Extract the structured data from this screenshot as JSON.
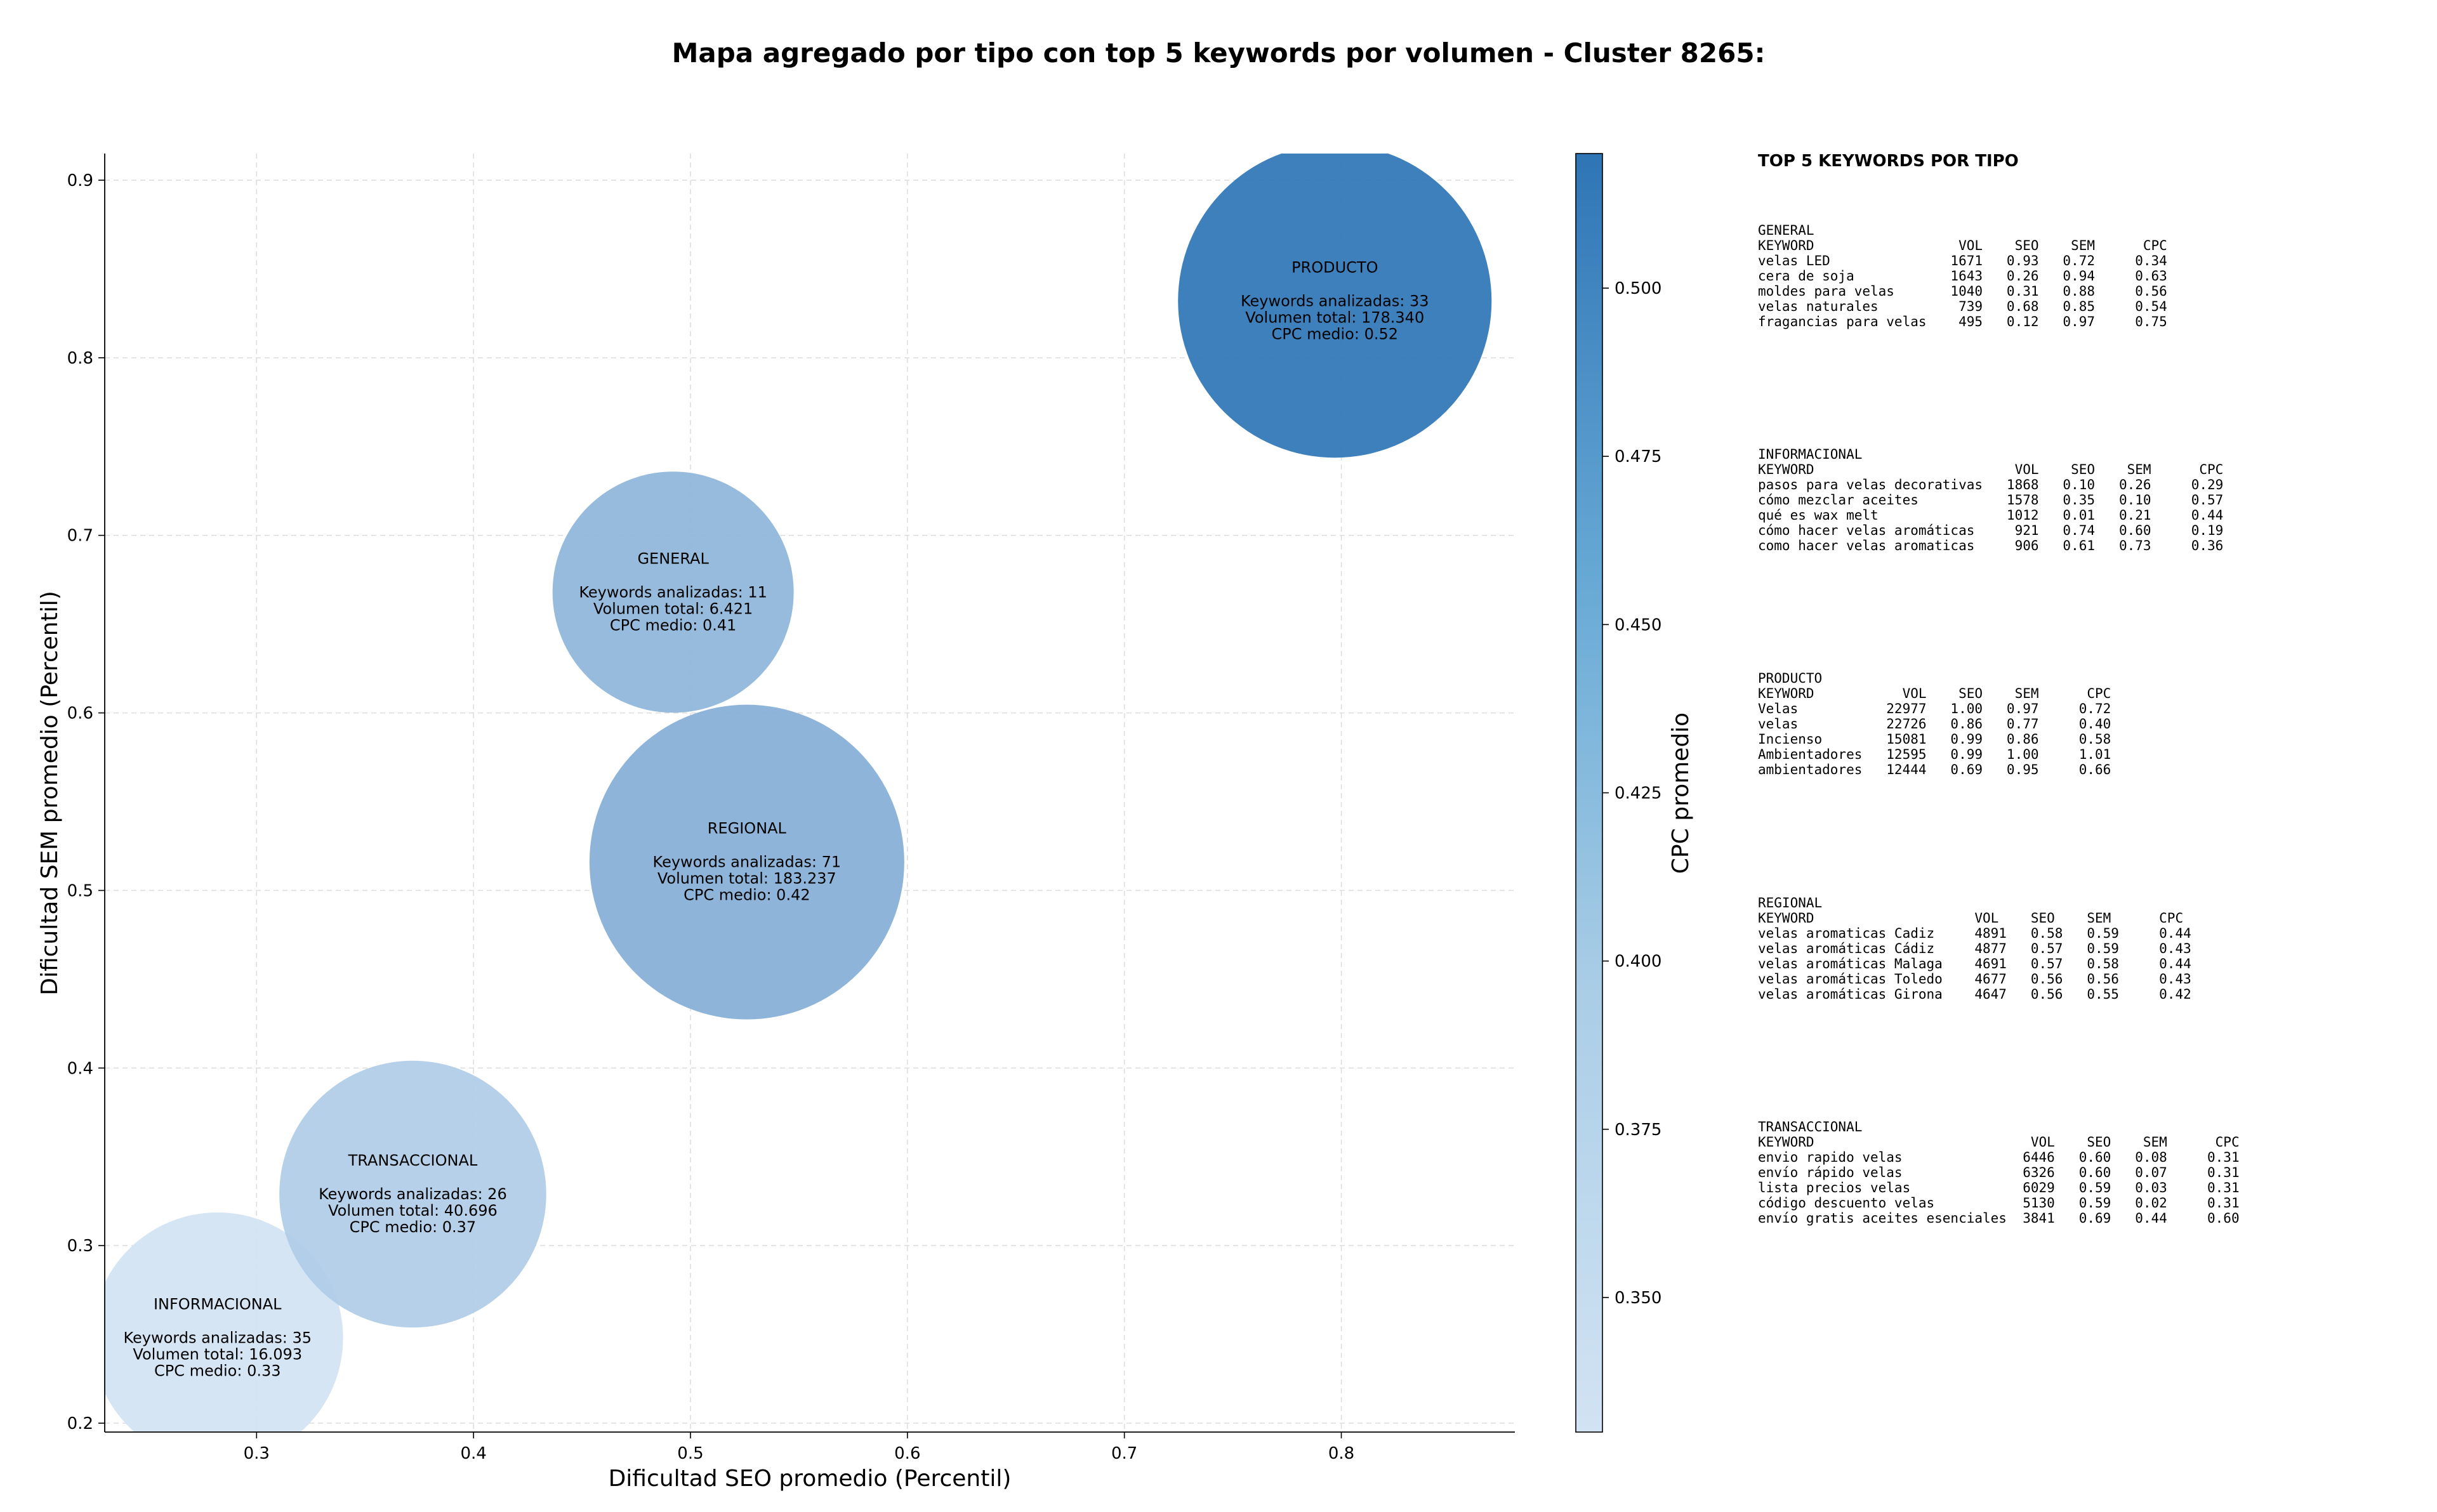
{
  "title": "Mapa agregado por tipo con top 5 keywords por volumen - Cluster 8265:",
  "chart_data": {
    "type": "scatter",
    "xlabel": "Dificultad SEO promedio (Percentil)",
    "ylabel": "Dificultad SEM promedio (Percentil)",
    "xlim": [
      0.23,
      0.88
    ],
    "ylim": [
      0.195,
      0.915
    ],
    "xticks": [
      "0.3",
      "0.4",
      "0.5",
      "0.6",
      "0.7",
      "0.8"
    ],
    "yticks": [
      "0.2",
      "0.3",
      "0.4",
      "0.5",
      "0.6",
      "0.7",
      "0.8",
      "0.9"
    ],
    "grid": true,
    "colorbar": {
      "label": "CPC promedio",
      "range": [
        0.33,
        0.52
      ],
      "ticks": [
        "0.350",
        "0.375",
        "0.400",
        "0.425",
        "0.450",
        "0.475",
        "0.500"
      ],
      "color_low": "#d2e3f3",
      "color_high": "#2e75b6"
    },
    "bubbles": [
      {
        "name": "INFORMACIONAL",
        "x": 0.282,
        "y": 0.248,
        "keywords_label": "Keywords analizadas: 35",
        "volume_label": "Volumen total: 16.093",
        "cpc_label": "CPC medio: 0.33",
        "volume": 16093,
        "cpc": 0.33
      },
      {
        "name": "TRANSACCIONAL",
        "x": 0.372,
        "y": 0.329,
        "keywords_label": "Keywords analizadas: 26",
        "volume_label": "Volumen total: 40.696",
        "cpc_label": "CPC medio: 0.37",
        "volume": 40696,
        "cpc": 0.37
      },
      {
        "name": "GENERAL",
        "x": 0.492,
        "y": 0.668,
        "keywords_label": "Keywords analizadas: 11",
        "volume_label": "Volumen total: 6.421",
        "cpc_label": "CPC medio: 0.41",
        "volume": 6421,
        "cpc": 0.41
      },
      {
        "name": "REGIONAL",
        "x": 0.526,
        "y": 0.516,
        "keywords_label": "Keywords analizadas: 71",
        "volume_label": "Volumen total: 183.237",
        "cpc_label": "CPC medio: 0.42",
        "volume": 183237,
        "cpc": 0.42
      },
      {
        "name": "PRODUCTO",
        "x": 0.797,
        "y": 0.832,
        "keywords_label": "Keywords analizadas: 33",
        "volume_label": "Volumen total: 178.340",
        "cpc_label": "CPC medio: 0.52",
        "volume": 178340,
        "cpc": 0.52
      }
    ]
  },
  "keywords_panel": {
    "title": "TOP 5 KEYWORDS POR TIPO",
    "sections": [
      {
        "name": "GENERAL",
        "lines": [
          "KEYWORD                  VOL    SEO    SEM      CPC",
          "velas LED               1671   0.93   0.72     0.34",
          "cera de soja            1643   0.26   0.94     0.63",
          "moldes para velas       1040   0.31   0.88     0.56",
          "velas naturales          739   0.68   0.85     0.54",
          "fragancias para velas    495   0.12   0.97     0.75"
        ]
      },
      {
        "name": "INFORMACIONAL",
        "lines": [
          "KEYWORD                         VOL    SEO    SEM      CPC",
          "pasos para velas decorativas   1868   0.10   0.26     0.29",
          "cómo mezclar aceites           1578   0.35   0.10     0.57",
          "qué es wax melt                1012   0.01   0.21     0.44",
          "cómo hacer velas aromáticas     921   0.74   0.60     0.19",
          "como hacer velas aromaticas     906   0.61   0.73     0.36"
        ]
      },
      {
        "name": "PRODUCTO",
        "lines": [
          "KEYWORD           VOL    SEO    SEM      CPC",
          "Velas           22977   1.00   0.97     0.72",
          "velas           22726   0.86   0.77     0.40",
          "Incienso        15081   0.99   0.86     0.58",
          "Ambientadores   12595   0.99   1.00     1.01",
          "ambientadores   12444   0.69   0.95     0.66"
        ]
      },
      {
        "name": "REGIONAL",
        "lines": [
          "KEYWORD                    VOL    SEO    SEM      CPC",
          "velas aromaticas Cadiz     4891   0.58   0.59     0.44",
          "velas aromáticas Cádiz     4877   0.57   0.59     0.43",
          "velas aromáticas Malaga    4691   0.57   0.58     0.44",
          "velas aromáticas Toledo    4677   0.56   0.56     0.43",
          "velas aromáticas Girona    4647   0.56   0.55     0.42"
        ]
      },
      {
        "name": "TRANSACCIONAL",
        "lines": [
          "KEYWORD                           VOL    SEO    SEM      CPC",
          "envio rapido velas               6446   0.60   0.08     0.31",
          "envío rápido velas               6326   0.60   0.07     0.31",
          "lista precios velas              6029   0.59   0.03     0.31",
          "código descuento velas           5130   0.59   0.02     0.31",
          "envío gratis aceites esenciales  3841   0.69   0.44     0.60"
        ]
      }
    ]
  }
}
